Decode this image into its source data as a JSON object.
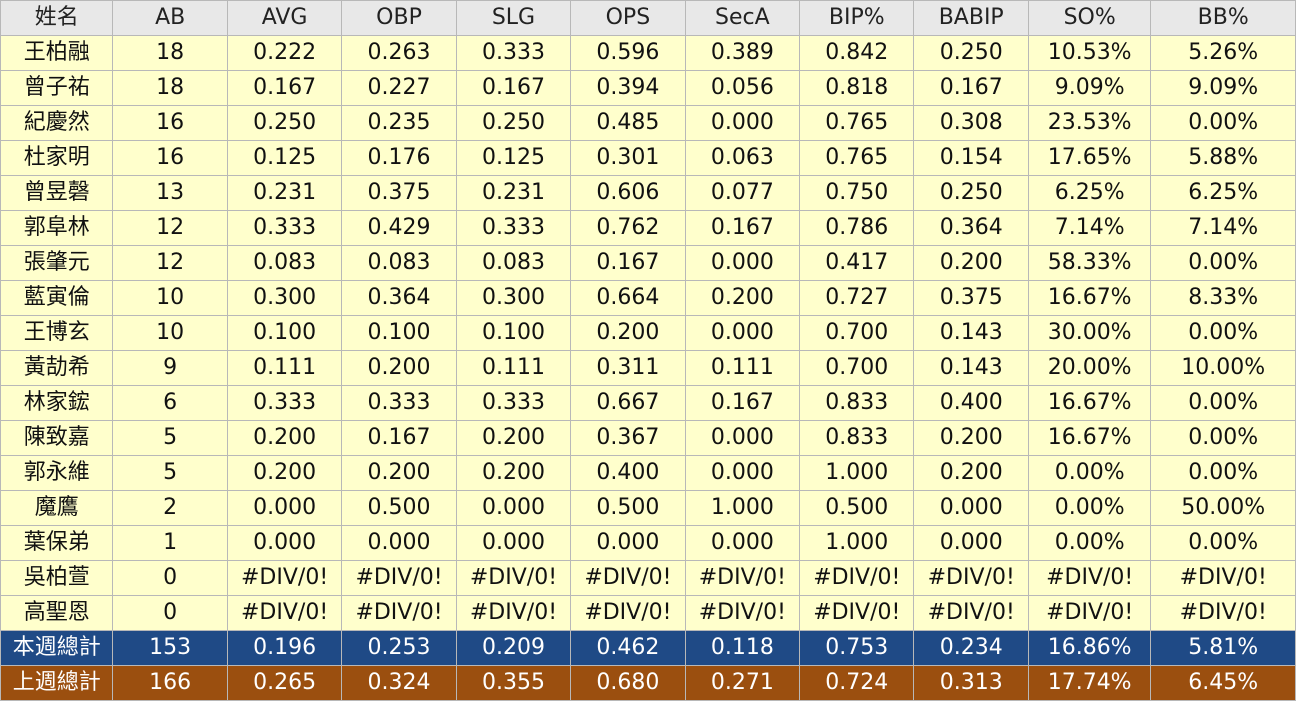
{
  "table": {
    "headers": [
      "姓名",
      "AB",
      "AVG",
      "OBP",
      "SLG",
      "OPS",
      "SecA",
      "BIP%",
      "BABIP",
      "SO%",
      "BB%"
    ],
    "rows": [
      [
        "王柏融",
        "18",
        "0.222",
        "0.263",
        "0.333",
        "0.596",
        "0.389",
        "0.842",
        "0.250",
        "10.53%",
        "5.26%"
      ],
      [
        "曾子祐",
        "18",
        "0.167",
        "0.227",
        "0.167",
        "0.394",
        "0.056",
        "0.818",
        "0.167",
        "9.09%",
        "9.09%"
      ],
      [
        "紀慶然",
        "16",
        "0.250",
        "0.235",
        "0.250",
        "0.485",
        "0.000",
        "0.765",
        "0.308",
        "23.53%",
        "0.00%"
      ],
      [
        "杜家明",
        "16",
        "0.125",
        "0.176",
        "0.125",
        "0.301",
        "0.063",
        "0.765",
        "0.154",
        "17.65%",
        "5.88%"
      ],
      [
        "曾昱磬",
        "13",
        "0.231",
        "0.375",
        "0.231",
        "0.606",
        "0.077",
        "0.750",
        "0.250",
        "6.25%",
        "6.25%"
      ],
      [
        "郭阜林",
        "12",
        "0.333",
        "0.429",
        "0.333",
        "0.762",
        "0.167",
        "0.786",
        "0.364",
        "7.14%",
        "7.14%"
      ],
      [
        "張肇元",
        "12",
        "0.083",
        "0.083",
        "0.083",
        "0.167",
        "0.000",
        "0.417",
        "0.200",
        "58.33%",
        "0.00%"
      ],
      [
        "藍寅倫",
        "10",
        "0.300",
        "0.364",
        "0.300",
        "0.664",
        "0.200",
        "0.727",
        "0.375",
        "16.67%",
        "8.33%"
      ],
      [
        "王博玄",
        "10",
        "0.100",
        "0.100",
        "0.100",
        "0.200",
        "0.000",
        "0.700",
        "0.143",
        "30.00%",
        "0.00%"
      ],
      [
        "黃劼希",
        "9",
        "0.111",
        "0.200",
        "0.111",
        "0.311",
        "0.111",
        "0.700",
        "0.143",
        "20.00%",
        "10.00%"
      ],
      [
        "林家鋐",
        "6",
        "0.333",
        "0.333",
        "0.333",
        "0.667",
        "0.167",
        "0.833",
        "0.400",
        "16.67%",
        "0.00%"
      ],
      [
        "陳致嘉",
        "5",
        "0.200",
        "0.167",
        "0.200",
        "0.367",
        "0.000",
        "0.833",
        "0.200",
        "16.67%",
        "0.00%"
      ],
      [
        "郭永維",
        "5",
        "0.200",
        "0.200",
        "0.200",
        "0.400",
        "0.000",
        "1.000",
        "0.200",
        "0.00%",
        "0.00%"
      ],
      [
        "魔鷹",
        "2",
        "0.000",
        "0.500",
        "0.000",
        "0.500",
        "1.000",
        "0.500",
        "0.000",
        "0.00%",
        "50.00%"
      ],
      [
        "葉保弟",
        "1",
        "0.000",
        "0.000",
        "0.000",
        "0.000",
        "0.000",
        "1.000",
        "0.000",
        "0.00%",
        "0.00%"
      ],
      [
        "吳柏萱",
        "0",
        "#DIV/0!",
        "#DIV/0!",
        "#DIV/0!",
        "#DIV/0!",
        "#DIV/0!",
        "#DIV/0!",
        "#DIV/0!",
        "#DIV/0!",
        "#DIV/0!"
      ],
      [
        "高聖恩",
        "0",
        "#DIV/0!",
        "#DIV/0!",
        "#DIV/0!",
        "#DIV/0!",
        "#DIV/0!",
        "#DIV/0!",
        "#DIV/0!",
        "#DIV/0!",
        "#DIV/0!"
      ]
    ],
    "totals": [
      {
        "kind": "this-week",
        "cells": [
          "本週總計",
          "153",
          "0.196",
          "0.253",
          "0.209",
          "0.462",
          "0.118",
          "0.753",
          "0.234",
          "16.86%",
          "5.81%"
        ]
      },
      {
        "kind": "last-week",
        "cells": [
          "上週總計",
          "166",
          "0.265",
          "0.324",
          "0.355",
          "0.680",
          "0.271",
          "0.724",
          "0.313",
          "17.74%",
          "6.45%"
        ]
      }
    ]
  },
  "colors": {
    "header_bg": "#e8e8e8",
    "row_bg": "#ffffcc",
    "this_week_bg": "#1f4a86",
    "last_week_bg": "#9b4f0f",
    "grid": "#b8b8b8"
  }
}
